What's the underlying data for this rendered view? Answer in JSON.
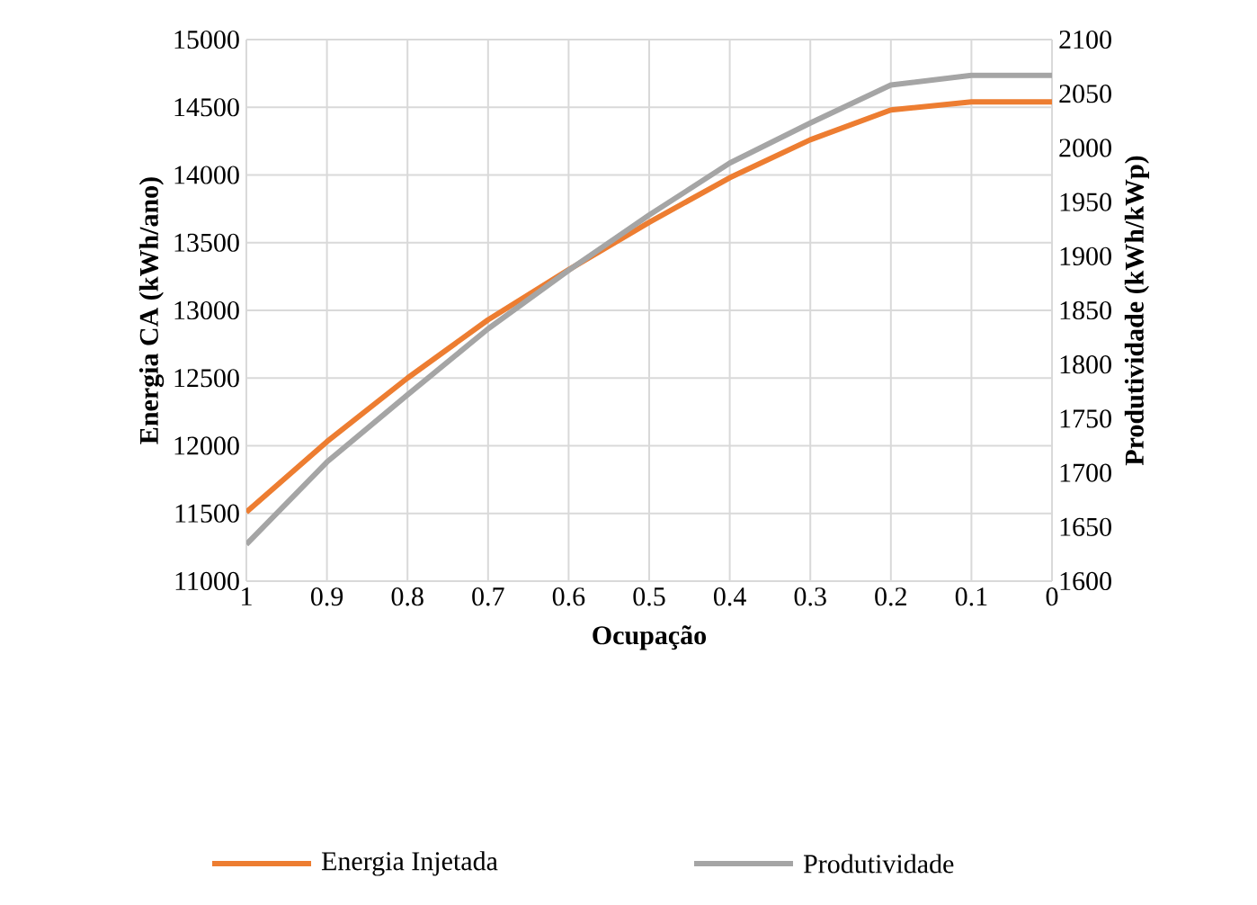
{
  "chart_data": {
    "type": "line",
    "xlabel": "Ocupação",
    "ylabel": "Energia CA (kWh/ano)",
    "y2label": "Produtividade (kWh/kWp)",
    "categories": [
      "1",
      "0.9",
      "0.8",
      "0.7",
      "0.6",
      "0.5",
      "0.4",
      "0.3",
      "0.2",
      "0.1",
      "0"
    ],
    "series": [
      {
        "name": "Energia Injetada",
        "color": "#ed7d31",
        "values": [
          11510,
          12030,
          12500,
          12930,
          13300,
          13650,
          13980,
          14260,
          14480,
          14540,
          14540
        ]
      },
      {
        "name": "Produtividade",
        "color": "#a5a5a5",
        "axis": "y2",
        "values": [
          1634,
          1710,
          1772,
          1833,
          1887,
          1938,
          1986,
          2023,
          2058,
          2067,
          2067
        ]
      }
    ],
    "ylim": [
      11000,
      15000
    ],
    "yticks": [
      11000,
      11500,
      12000,
      12500,
      13000,
      13500,
      14000,
      14500,
      15000
    ],
    "y2lim": [
      1600,
      2100
    ],
    "y2ticks": [
      1600,
      1650,
      1700,
      1750,
      1800,
      1850,
      1900,
      1950,
      2000,
      2050,
      2100
    ],
    "grid": true,
    "legend": "bottom",
    "marker": "none",
    "line_style": "solid"
  }
}
